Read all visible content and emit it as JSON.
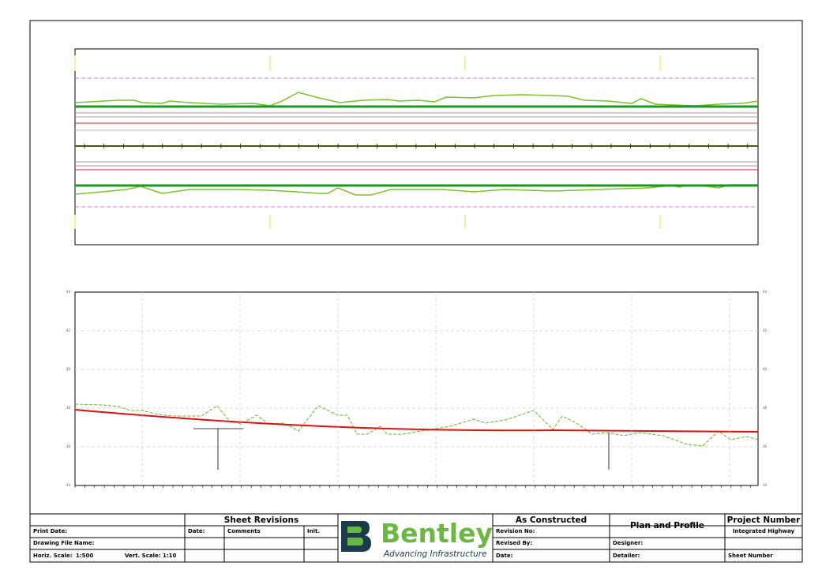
{
  "profile": {
    "y_labels": [
      "44",
      "42",
      "40",
      "38",
      "36",
      "34"
    ]
  },
  "title_block": {
    "print_date": "Print Date:",
    "drawing_file_name": "Drawing File Name:",
    "horiz_scale_label": "Horiz. Scale:",
    "horiz_scale": "1:500",
    "vert_scale_label": "Vert. Scale:",
    "vert_scale": "1:10",
    "sheet_revisions": "Sheet Revisions",
    "rev_date": "Date:",
    "rev_comments": "Comments",
    "rev_init": "Init.",
    "logo_name": "Bentley",
    "logo_tagline": "Advancing Infrastructure",
    "status": "As Constructed",
    "revision_no": "Revision No:",
    "revised_by": "Revised By:",
    "date": "Date:",
    "sheet_title": "Plan and Profile",
    "designer": "Designer:",
    "detailer": "Detailer:",
    "project_number_label": "Project Number",
    "project_number": "Integrated Highway",
    "sheet_number": "Sheet Number"
  }
}
